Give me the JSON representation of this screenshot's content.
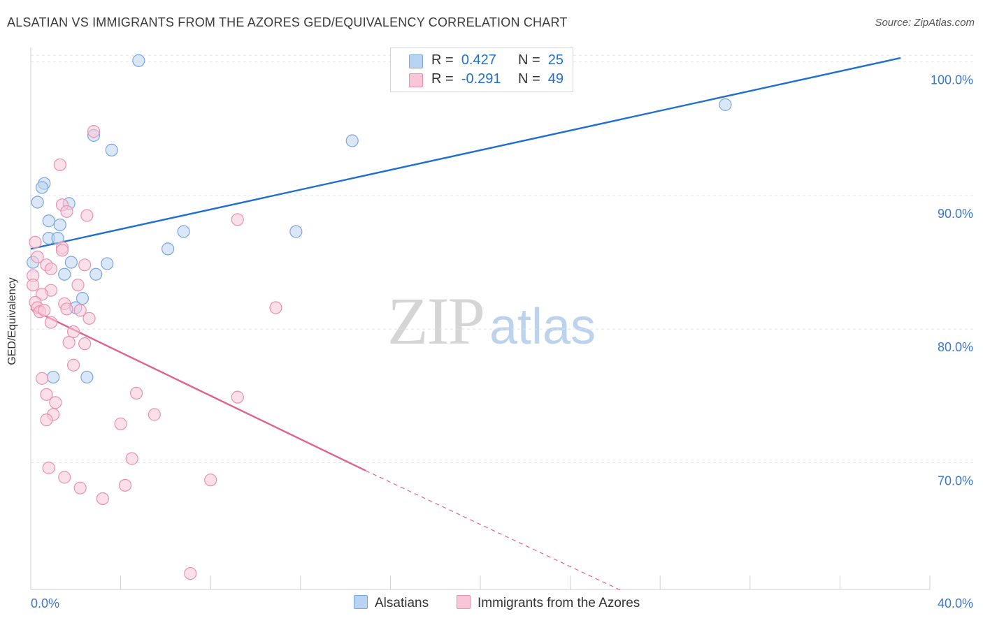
{
  "title": "ALSATIAN VS IMMIGRANTS FROM THE AZORES GED/EQUIVALENCY CORRELATION CHART",
  "source": "Source: ZipAtlas.com",
  "watermark": {
    "zip": "ZIP",
    "atlas": "atlas"
  },
  "colors": {
    "blue_fill": "#b9d3f3",
    "blue_stroke": "#7aa6de",
    "blue_line": "#1f6fd1",
    "pink_fill": "#f9c6d7",
    "pink_stroke": "#ea90b0",
    "pink_line": "#e0628f",
    "grid": "#e2e2e2",
    "axis_text": "#3b78c9"
  },
  "legend": {
    "rows": [
      {
        "r_label": "R =",
        "r_value": "0.427",
        "n_label": "N =",
        "n_value": "25"
      },
      {
        "r_label": "R =",
        "r_value": "-0.291",
        "n_label": "N =",
        "n_value": "49"
      }
    ]
  },
  "bottom_legend": {
    "series1": "Alsatians",
    "series2": "Immigrants from the Azores"
  },
  "chart_data": {
    "type": "scatter",
    "title": "ALSATIAN VS IMMIGRANTS FROM THE AZORES GED/EQUIVALENCY CORRELATION CHART",
    "xlabel": "",
    "ylabel": "GED/Equivalency",
    "xlim": [
      0,
      40
    ],
    "ylim": [
      60.5,
      101.5
    ],
    "x_tick_labels": [
      "0.0%",
      "40.0%"
    ],
    "y_ticks": [
      {
        "value": 100,
        "label": "100.0%"
      },
      {
        "value": 90,
        "label": "90.0%"
      },
      {
        "value": 80,
        "label": "80.0%"
      },
      {
        "value": 70,
        "label": "70.0%"
      }
    ],
    "series": [
      {
        "name": "Alsatians",
        "color": "blue",
        "points": [
          [
            4.8,
            100.1
          ],
          [
            30.9,
            96.8
          ],
          [
            2.8,
            94.5
          ],
          [
            14.3,
            94.1
          ],
          [
            3.6,
            93.4
          ],
          [
            0.6,
            90.9
          ],
          [
            0.5,
            90.6
          ],
          [
            0.3,
            89.5
          ],
          [
            1.7,
            89.4
          ],
          [
            0.8,
            88.1
          ],
          [
            1.3,
            87.8
          ],
          [
            6.8,
            87.3
          ],
          [
            11.8,
            87.3
          ],
          [
            0.8,
            86.8
          ],
          [
            1.2,
            86.8
          ],
          [
            6.1,
            86.0
          ],
          [
            1.8,
            85.0
          ],
          [
            3.4,
            84.9
          ],
          [
            1.5,
            84.1
          ],
          [
            2.9,
            84.1
          ],
          [
            2.3,
            82.3
          ],
          [
            2.0,
            81.6
          ],
          [
            0.1,
            85.0
          ],
          [
            2.5,
            76.4
          ],
          [
            1.0,
            76.4
          ]
        ],
        "trend": {
          "x0": 0,
          "y0": 86.0,
          "x1": 38.7,
          "y1": 100.3
        }
      },
      {
        "name": "Immigrants from the Azores",
        "color": "pink",
        "points": [
          [
            2.8,
            94.8
          ],
          [
            1.3,
            92.3
          ],
          [
            1.4,
            89.3
          ],
          [
            1.6,
            88.8
          ],
          [
            2.5,
            88.5
          ],
          [
            9.2,
            88.2
          ],
          [
            0.2,
            86.5
          ],
          [
            1.4,
            86.1
          ],
          [
            1.4,
            85.9
          ],
          [
            0.3,
            85.4
          ],
          [
            0.7,
            84.8
          ],
          [
            0.9,
            84.5
          ],
          [
            2.4,
            84.8
          ],
          [
            0.1,
            84.0
          ],
          [
            0.1,
            83.3
          ],
          [
            2.1,
            83.3
          ],
          [
            0.9,
            82.9
          ],
          [
            0.5,
            82.6
          ],
          [
            0.2,
            82.0
          ],
          [
            1.5,
            81.9
          ],
          [
            1.6,
            81.5
          ],
          [
            2.2,
            81.4
          ],
          [
            10.9,
            81.6
          ],
          [
            0.3,
            81.6
          ],
          [
            0.4,
            81.3
          ],
          [
            0.6,
            81.4
          ],
          [
            0.9,
            80.5
          ],
          [
            2.6,
            80.8
          ],
          [
            1.9,
            79.8
          ],
          [
            1.7,
            79.0
          ],
          [
            2.4,
            78.9
          ],
          [
            1.9,
            77.3
          ],
          [
            0.5,
            76.3
          ],
          [
            0.7,
            75.1
          ],
          [
            4.7,
            75.2
          ],
          [
            9.2,
            74.9
          ],
          [
            1.1,
            74.5
          ],
          [
            1.0,
            73.6
          ],
          [
            5.5,
            73.6
          ],
          [
            0.7,
            73.2
          ],
          [
            4.0,
            72.9
          ],
          [
            4.5,
            70.3
          ],
          [
            0.8,
            69.6
          ],
          [
            1.5,
            68.9
          ],
          [
            8.0,
            68.7
          ],
          [
            4.2,
            68.3
          ],
          [
            2.2,
            68.1
          ],
          [
            3.2,
            67.3
          ],
          [
            7.1,
            61.7
          ]
        ],
        "trend": {
          "x0": 0,
          "y0": 81.5,
          "x1": 14.9,
          "y1": 69.4
        },
        "trend_extension": {
          "x0": 14.9,
          "y0": 69.4,
          "x1": 26.3,
          "y1": 60.4
        }
      }
    ]
  }
}
